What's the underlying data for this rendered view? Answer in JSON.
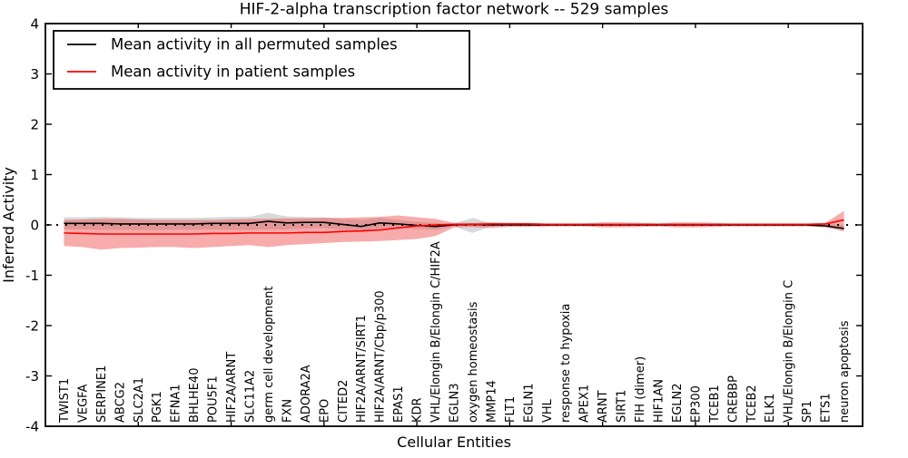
{
  "figure": {
    "title": "HIF-2-alpha transcription factor network -- 529 samples",
    "xlabel": "Cellular Entities",
    "ylabel": "Inferred Activity"
  },
  "chart_data": {
    "type": "line",
    "title": "HIF-2-alpha transcription factor network -- 529 samples",
    "xlabel": "Cellular Entities",
    "ylabel": "Inferred Activity",
    "ylim": [
      -4,
      4
    ],
    "xlim": [
      0,
      44
    ],
    "yticks": [
      -4,
      -3,
      -2,
      -1,
      0,
      1,
      2,
      3,
      4
    ],
    "xticks_positions": [
      5,
      10,
      15,
      20,
      25,
      30,
      35,
      40
    ],
    "grid": false,
    "zero_line": true,
    "legend_position": "upper left",
    "categories": [
      "TWIST1",
      "VEGFA",
      "SERPINE1",
      "ABCG2",
      "SLC2A1",
      "PGK1",
      "EFNA1",
      "BHLHE40",
      "POU5F1",
      "HIF2A/ARNT",
      "SLC11A2",
      "germ cell development",
      "FXN",
      "ADORA2A",
      "EPO",
      "CITED2",
      "HIF2A/ARNT/SIRT1",
      "HIF2A/ARNT/Cbp/p300",
      "EPAS1",
      "KDR",
      "VHL/Elongin B/Elongin C/HIF2A",
      "EGLN3",
      "oxygen homeostasis",
      "MMP14",
      "FLT1",
      "EGLN1",
      "VHL",
      "response to hypoxia",
      "APEX1",
      "ARNT",
      "SIRT1",
      "FIH (dimer)",
      "HIF1AN",
      "EGLN2",
      "EP300",
      "TCEB1",
      "CREBBP",
      "TCEB2",
      "ELK1",
      "VHL/Elongin B/Elongin C",
      "SP1",
      "ETS1",
      "neuron apoptosis"
    ],
    "series": [
      {
        "name": "Mean activity in all permuted samples",
        "color": "#000000",
        "band_color": "#aaaaaa",
        "values": [
          0.03,
          0.03,
          0.03,
          0.02,
          0.02,
          0.02,
          0.02,
          0.02,
          0.03,
          0.03,
          0.03,
          0.07,
          0.04,
          0.05,
          0.05,
          0.01,
          -0.03,
          0.04,
          0.02,
          -0.01,
          -0.03,
          0.0,
          0.01,
          0.0,
          0.0,
          0.0,
          0.0,
          0.0,
          0.0,
          0.0,
          0.0,
          0.0,
          0.0,
          0.0,
          0.0,
          0.0,
          0.0,
          0.0,
          0.0,
          0.0,
          0.0,
          -0.02,
          -0.07
        ],
        "band_upper": [
          0.15,
          0.15,
          0.16,
          0.15,
          0.14,
          0.14,
          0.14,
          0.14,
          0.15,
          0.16,
          0.16,
          0.24,
          0.17,
          0.16,
          0.15,
          0.12,
          0.1,
          0.14,
          0.1,
          0.06,
          0.04,
          0.03,
          0.14,
          0.03,
          0.02,
          0.02,
          0.02,
          0.02,
          0.02,
          0.02,
          0.02,
          0.02,
          0.02,
          0.02,
          0.02,
          0.02,
          0.02,
          0.02,
          0.02,
          0.02,
          0.02,
          0.02,
          0.0
        ],
        "band_lower": [
          -0.09,
          -0.09,
          -0.1,
          -0.1,
          -0.1,
          -0.1,
          -0.1,
          -0.1,
          -0.09,
          -0.1,
          -0.1,
          -0.09,
          -0.09,
          -0.07,
          -0.06,
          -0.1,
          -0.13,
          -0.06,
          -0.06,
          -0.08,
          -0.1,
          -0.03,
          -0.16,
          -0.03,
          -0.02,
          -0.02,
          -0.02,
          -0.02,
          -0.02,
          -0.02,
          -0.02,
          -0.02,
          -0.02,
          -0.02,
          -0.02,
          -0.02,
          -0.02,
          -0.02,
          -0.02,
          -0.02,
          -0.02,
          -0.05,
          -0.13
        ]
      },
      {
        "name": "Mean activity in patient samples",
        "color": "#ff0000",
        "band_color": "#ee4444",
        "values": [
          -0.16,
          -0.17,
          -0.18,
          -0.18,
          -0.18,
          -0.18,
          -0.18,
          -0.18,
          -0.17,
          -0.17,
          -0.16,
          -0.16,
          -0.16,
          -0.15,
          -0.15,
          -0.13,
          -0.12,
          -0.1,
          -0.06,
          -0.02,
          0.0,
          0.01,
          0.01,
          0.02,
          0.02,
          0.02,
          0.01,
          0.01,
          0.01,
          0.01,
          0.01,
          0.01,
          0.01,
          0.01,
          0.01,
          0.01,
          0.01,
          0.01,
          0.01,
          0.01,
          0.01,
          0.02,
          0.1
        ],
        "band_upper": [
          0.1,
          0.11,
          0.12,
          0.12,
          0.11,
          0.1,
          0.1,
          0.1,
          0.1,
          0.11,
          0.12,
          0.12,
          0.13,
          0.13,
          0.14,
          0.14,
          0.15,
          0.16,
          0.19,
          0.15,
          0.12,
          0.04,
          0.04,
          0.05,
          0.04,
          0.04,
          0.03,
          0.03,
          0.03,
          0.05,
          0.05,
          0.04,
          0.03,
          0.05,
          0.05,
          0.04,
          0.03,
          0.03,
          0.03,
          0.03,
          0.03,
          0.04,
          0.28
        ],
        "band_lower": [
          -0.42,
          -0.44,
          -0.49,
          -0.46,
          -0.45,
          -0.44,
          -0.44,
          -0.46,
          -0.44,
          -0.42,
          -0.4,
          -0.44,
          -0.4,
          -0.38,
          -0.36,
          -0.34,
          -0.33,
          -0.32,
          -0.3,
          -0.28,
          -0.22,
          -0.05,
          -0.04,
          -0.06,
          -0.04,
          -0.04,
          -0.03,
          -0.03,
          -0.03,
          -0.05,
          -0.05,
          -0.04,
          -0.03,
          -0.05,
          -0.05,
          -0.04,
          -0.03,
          -0.03,
          -0.03,
          -0.03,
          -0.03,
          -0.04,
          -0.12
        ]
      }
    ]
  }
}
